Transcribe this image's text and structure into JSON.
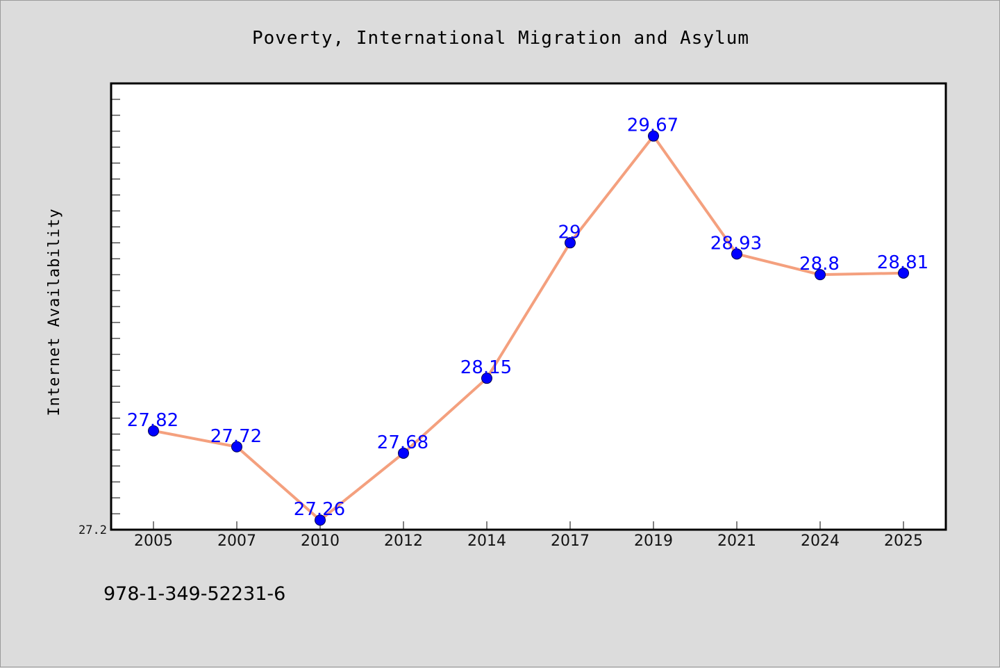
{
  "colors": {
    "background": "#dcdcdc",
    "plot_background": "#ffffff",
    "line": "#f4a07e",
    "marker": "#0000ff",
    "data_label": "#0000ff",
    "axis": "#000000"
  },
  "footnote": "978-1-349-52231-6",
  "chart_data": {
    "type": "line",
    "title": "Poverty, International Migration and Asylum",
    "xlabel": "",
    "ylabel": "Internet Availability",
    "categories": [
      "2005",
      "2007",
      "2010",
      "2012",
      "2014",
      "2017",
      "2019",
      "2021",
      "2024",
      "2025"
    ],
    "series": [
      {
        "values": [
          27.82,
          27.72,
          27.26,
          27.68,
          28.15,
          29,
          29.67,
          28.93,
          28.8,
          28.81
        ],
        "labels": [
          "27.82",
          "27.72",
          "27.26",
          "27.68",
          "28.15",
          "29",
          "29.67",
          "28.93",
          "28.8",
          "28.81"
        ]
      }
    ],
    "y_tick_labels": [
      "27.2"
    ],
    "ylim": [
      27.2,
      30.0
    ],
    "grid": false,
    "legend": "none"
  }
}
